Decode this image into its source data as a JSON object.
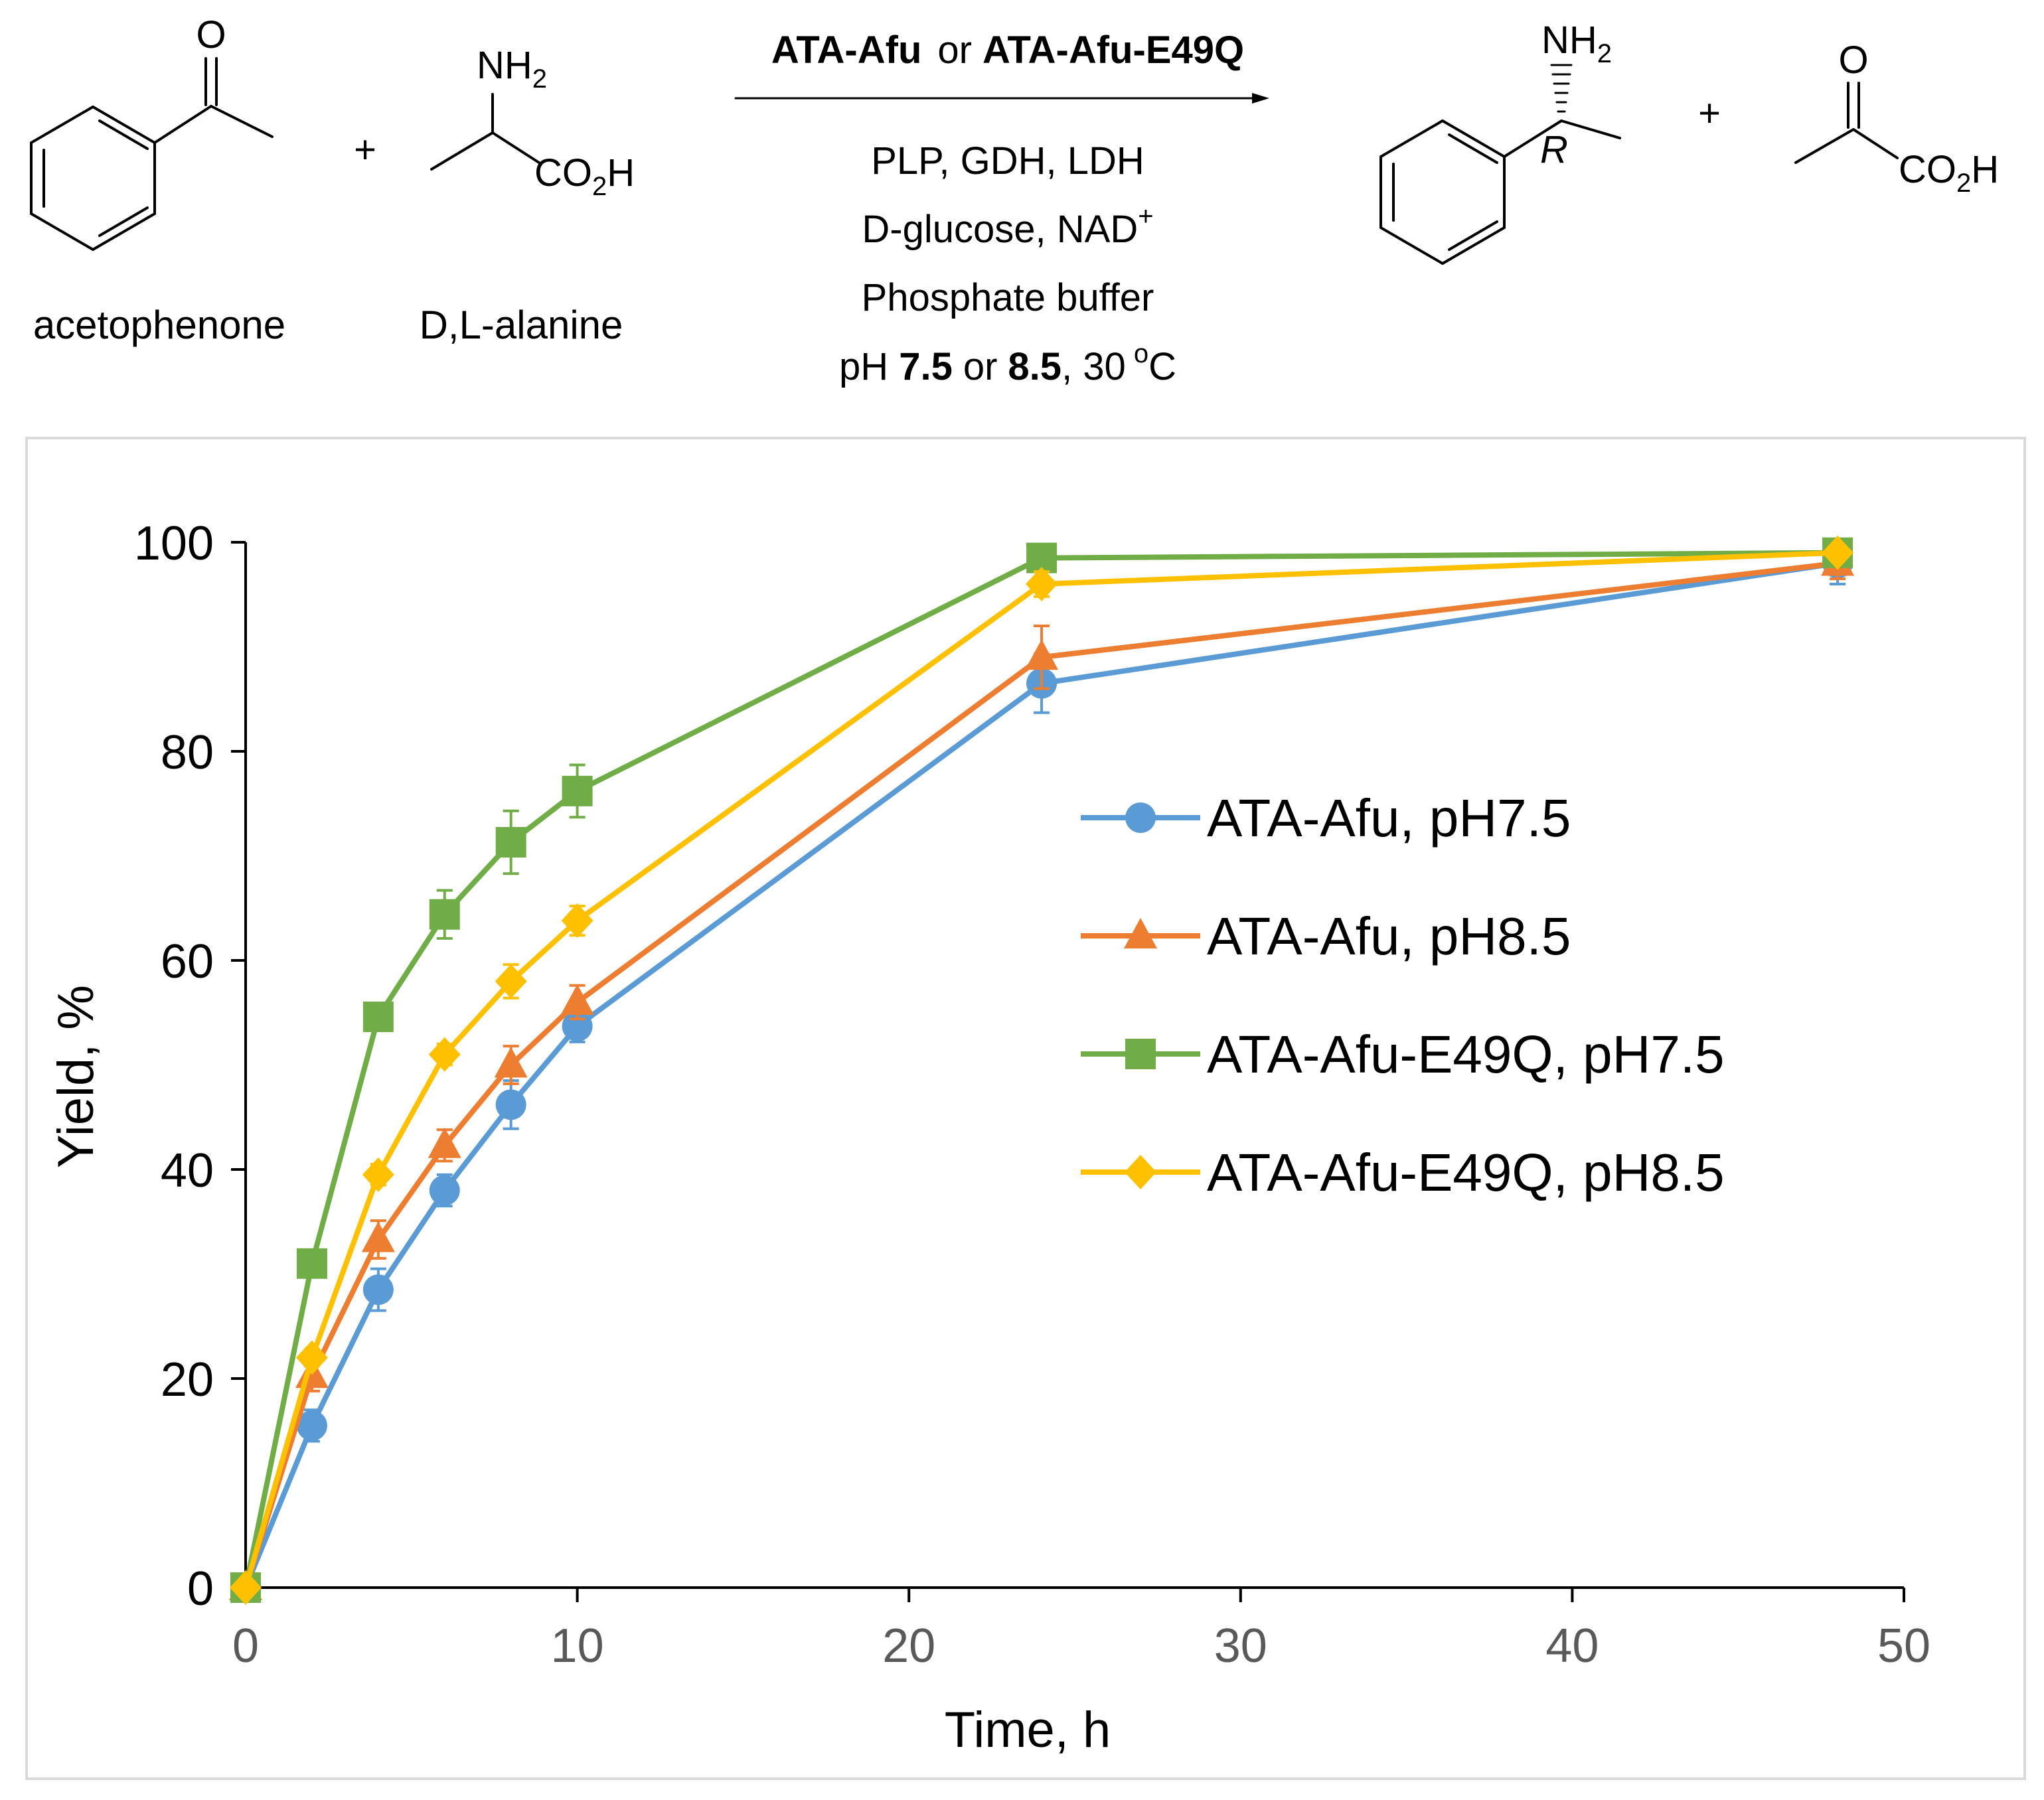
{
  "scheme": {
    "reactant1": "acetophenone",
    "reactant2": "D,L-alanine",
    "nh2_label": "NH",
    "nh2_sub": "2",
    "co2h_prefix": "CO",
    "co2h_sub": "2",
    "co2h_suffix": "H",
    "oxygen": "O",
    "plus": "+",
    "stereo_label": "R",
    "enzyme1": "ATA-Afu",
    "enzyme_or": "or",
    "enzyme2": "ATA-Afu-E49Q",
    "condition1": "PLP,  GDH, LDH",
    "condition2_text": "D-glucose, NAD",
    "condition2_sup": "+",
    "condition3": "Phosphate buffer",
    "ph_prefix": "pH",
    "ph1": "7.5",
    "ph_or": "or",
    "ph2": "8.5",
    "temp_text": ", 30",
    "temp_deg": "o",
    "temp_unit": "C"
  },
  "chart_data": {
    "type": "line",
    "xlabel": "Time, h",
    "ylabel": "Yield, %",
    "xlim": [
      0,
      50
    ],
    "ylim": [
      0,
      100
    ],
    "xticks": [
      0,
      10,
      20,
      30,
      40,
      50
    ],
    "yticks": [
      0,
      20,
      40,
      60,
      80,
      100
    ],
    "grid": false,
    "legend_position": "right-center",
    "x": [
      0,
      2,
      4,
      6,
      8,
      10,
      24,
      48
    ],
    "series": [
      {
        "name": "ATA-Afu, pH7.5",
        "color": "#5B9BD5",
        "marker": "circle",
        "values": [
          0,
          15.5,
          28.5,
          38,
          46.2,
          53.7,
          86.5,
          98
        ],
        "errors": [
          0,
          1.5,
          2,
          1.5,
          2.3,
          1.5,
          2.8,
          2
        ]
      },
      {
        "name": "ATA-Afu, pH8.5",
        "color": "#ED7D31",
        "marker": "triangle",
        "values": [
          0,
          20.3,
          33.3,
          42.3,
          50,
          56,
          89,
          98
        ],
        "errors": [
          0,
          1.5,
          1.8,
          1.5,
          1.8,
          1.6,
          3,
          1.5
        ]
      },
      {
        "name": "ATA-Afu-E49Q, pH7.5",
        "color": "#70AD47",
        "marker": "square",
        "values": [
          0,
          31,
          54.6,
          64.4,
          71.3,
          76.2,
          98.5,
          99
        ],
        "errors": [
          0,
          1.2,
          1,
          2.3,
          3,
          2.5,
          0.8,
          0.6
        ]
      },
      {
        "name": "ATA-Afu-E49Q, pH8.5",
        "color": "#FFC000",
        "marker": "diamond",
        "values": [
          0,
          22,
          39.5,
          51,
          58,
          63.8,
          96,
          99
        ],
        "errors": [
          0,
          0.8,
          1,
          1,
          1.6,
          1.4,
          1.2,
          0.6
        ]
      }
    ]
  }
}
